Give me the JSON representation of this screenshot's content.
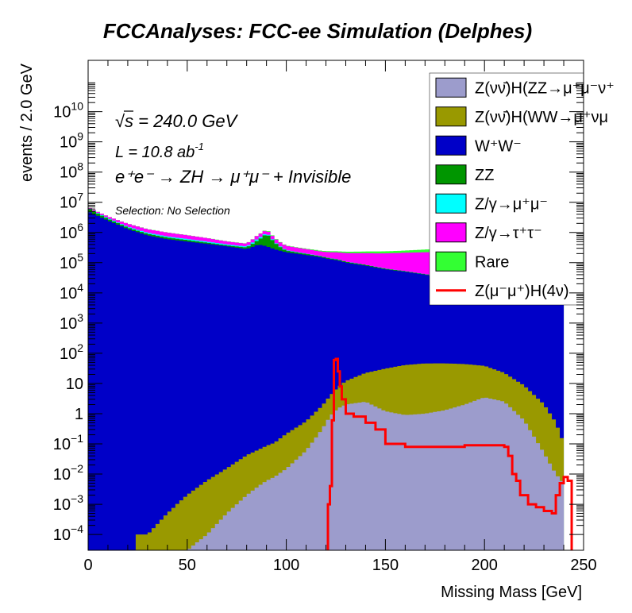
{
  "chart_data": {
    "type": "area",
    "title": "FCCAnalyses: FCC-ee Simulation (Delphes)",
    "xlabel": "Missing Mass [GeV]",
    "ylabel": "events / 2.0 GeV",
    "xlim": [
      0,
      250
    ],
    "ylim": [
      3e-05,
      500000000000
    ],
    "yscale": "log",
    "bin_width": 2.0,
    "x_ticks": [
      "0",
      "50",
      "100",
      "150",
      "200",
      "250"
    ],
    "y_ticks": [
      {
        "base": "10",
        "exp": "−4",
        "value": 0.0001
      },
      {
        "base": "10",
        "exp": "−3",
        "value": 0.001
      },
      {
        "base": "10",
        "exp": "−2",
        "value": 0.01
      },
      {
        "base": "10",
        "exp": "−1",
        "value": 0.1
      },
      {
        "base": "1",
        "exp": "",
        "value": 1
      },
      {
        "base": "10",
        "exp": "",
        "value": 10
      },
      {
        "base": "10",
        "exp": "2",
        "value": 100
      },
      {
        "base": "10",
        "exp": "3",
        "value": 1000
      },
      {
        "base": "10",
        "exp": "4",
        "value": 10000
      },
      {
        "base": "10",
        "exp": "5",
        "value": 100000
      },
      {
        "base": "10",
        "exp": "6",
        "value": 1000000
      },
      {
        "base": "10",
        "exp": "7",
        "value": 10000000
      },
      {
        "base": "10",
        "exp": "8",
        "value": 100000000
      },
      {
        "base": "10",
        "exp": "9",
        "value": 1000000000
      },
      {
        "base": "10",
        "exp": "10",
        "value": 10000000000
      }
    ],
    "annotations": {
      "sqrt_s": "s = 240.0 GeV",
      "lumi": "L = 10.8 ab",
      "lumi_exp": "-1",
      "process": "e⁺e⁻ → ZH → μ⁺μ⁻ + Invisible",
      "selection": "Selection: No Selection"
    },
    "x_points": [
      0,
      10,
      20,
      30,
      40,
      50,
      60,
      70,
      80,
      86,
      90,
      94,
      100,
      110,
      118,
      122,
      126,
      130,
      140,
      150,
      160,
      170,
      180,
      190,
      200,
      210,
      220,
      230,
      236,
      240,
      242,
      244
    ],
    "stacked_series": [
      {
        "name": "Z(νν̄)H(ZZ→μ⁺μ⁻ν⁺ν⁻)",
        "color": "#9c9ccc",
        "values": [
          0,
          0,
          0,
          0,
          0,
          3e-05,
          0.0001,
          0.0005,
          0.002,
          0.004,
          0.006,
          0.008,
          0.015,
          0.06,
          0.3,
          0.8,
          1.5,
          2.0,
          2.5,
          1.2,
          0.9,
          1.0,
          1.3,
          2.0,
          3.5,
          2.5,
          0.6,
          0.05,
          0.01,
          0.005,
          0,
          0
        ]
      },
      {
        "name": "Z(νν̄)H(WW→μ⁺νμ⁻ν)",
        "color": "#999900",
        "values": [
          0,
          0,
          0,
          0.0001,
          0.0005,
          0.002,
          0.006,
          0.015,
          0.04,
          0.06,
          0.08,
          0.1,
          0.2,
          0.5,
          1.5,
          3,
          6,
          10,
          20,
          30,
          40,
          45,
          45,
          42,
          35,
          20,
          8,
          2,
          0.5,
          0.1,
          0,
          0
        ]
      },
      {
        "name": "W⁺W⁻",
        "color": "#0000c8",
        "values": [
          5000000,
          2500000,
          1300000,
          800000,
          600000,
          500000,
          420000,
          350000,
          280000,
          400000,
          350000,
          280000,
          220000,
          180000,
          150000,
          130000,
          120000,
          100000,
          80000,
          60000,
          50000,
          40000,
          30000,
          30000,
          30000,
          25000,
          20000,
          15000,
          10000,
          5000,
          0,
          0
        ]
      },
      {
        "name": "ZZ",
        "color": "#009600",
        "values": [
          1200000,
          350000,
          150000,
          100000,
          80000,
          60000,
          40000,
          25000,
          40000,
          180000,
          600000,
          200000,
          30000,
          15000,
          10000,
          9000,
          8000,
          7000,
          5000,
          3000,
          2000,
          1500,
          1000,
          600,
          400,
          500,
          600,
          800,
          1500,
          30000,
          0,
          0
        ]
      },
      {
        "name": "Z/γ→μ⁺μ⁻",
        "color": "#00ffff",
        "values": [
          300000,
          150000,
          100000,
          80000,
          60000,
          50000,
          40000,
          30000,
          25000,
          80000,
          60000,
          30000,
          10000,
          5000,
          3000,
          2000,
          1500,
          1000,
          700,
          500,
          400,
          300,
          300,
          300,
          500,
          1000,
          3000,
          5000,
          8000,
          50000,
          0,
          0
        ]
      },
      {
        "name": "Z/γ→τ⁺τ⁻",
        "color": "#ff00ff",
        "values": [
          400000,
          400000,
          400000,
          300000,
          250000,
          200000,
          150000,
          100000,
          80000,
          200000,
          250000,
          150000,
          100000,
          80000,
          70000,
          80000,
          90000,
          100000,
          120000,
          140000,
          160000,
          180000,
          200000,
          220000,
          200000,
          180000,
          150000,
          120000,
          100000,
          200000,
          0,
          0
        ]
      },
      {
        "name": "Rare",
        "color": "#33ff33",
        "values": [
          50000,
          30000,
          20000,
          15000,
          12000,
          10000,
          8000,
          7000,
          6000,
          15000,
          60000,
          30000,
          9000,
          12000,
          15000,
          18000,
          20000,
          22000,
          30000,
          35000,
          40000,
          50000,
          60000,
          80000,
          100000,
          150000,
          250000,
          400000,
          600000,
          900000,
          0,
          0
        ]
      }
    ],
    "line_series": {
      "name": "Z(μ⁻μ⁺)H(4ν)",
      "color": "#ff0000",
      "x": [
        0,
        120,
        121,
        122,
        123,
        124,
        125,
        126,
        127,
        128,
        130,
        134,
        140,
        145,
        150,
        160,
        170,
        180,
        190,
        200,
        210,
        212,
        214,
        216,
        218,
        222,
        226,
        230,
        234,
        236,
        238,
        240,
        242,
        244
      ],
      "values": [
        0,
        0,
        0.001,
        0.004,
        0.6,
        60,
        65,
        25,
        8,
        3,
        1.0,
        0.8,
        0.5,
        0.3,
        0.1,
        0.08,
        0.08,
        0.08,
        0.09,
        0.09,
        0.08,
        0.04,
        0.01,
        0.006,
        0.002,
        0.001,
        0.0008,
        0.0006,
        0.0005,
        0.002,
        0.005,
        0.008,
        0.006,
        0
      ]
    },
    "legend": {
      "position": "top-right",
      "entries": [
        {
          "label": "Z(νν̄)H(ZZ→μ⁺μ⁻ν⁺",
          "color": "#9c9ccc",
          "kind": "box"
        },
        {
          "label": "Z(νν̄)H(WW→μ⁺νμ",
          "color": "#999900",
          "kind": "box"
        },
        {
          "label": "W⁺W⁻",
          "color": "#0000c8",
          "kind": "box"
        },
        {
          "label": "ZZ",
          "color": "#009600",
          "kind": "box"
        },
        {
          "label": "Z/γ→μ⁺μ⁻",
          "color": "#00ffff",
          "kind": "box"
        },
        {
          "label": "Z/γ→τ⁺τ⁻",
          "color": "#ff00ff",
          "kind": "box"
        },
        {
          "label": "Rare",
          "color": "#33ff33",
          "kind": "box"
        },
        {
          "label": "Z(μ⁻μ⁺)H(4ν)",
          "color": "#ff0000",
          "kind": "line"
        }
      ]
    }
  }
}
